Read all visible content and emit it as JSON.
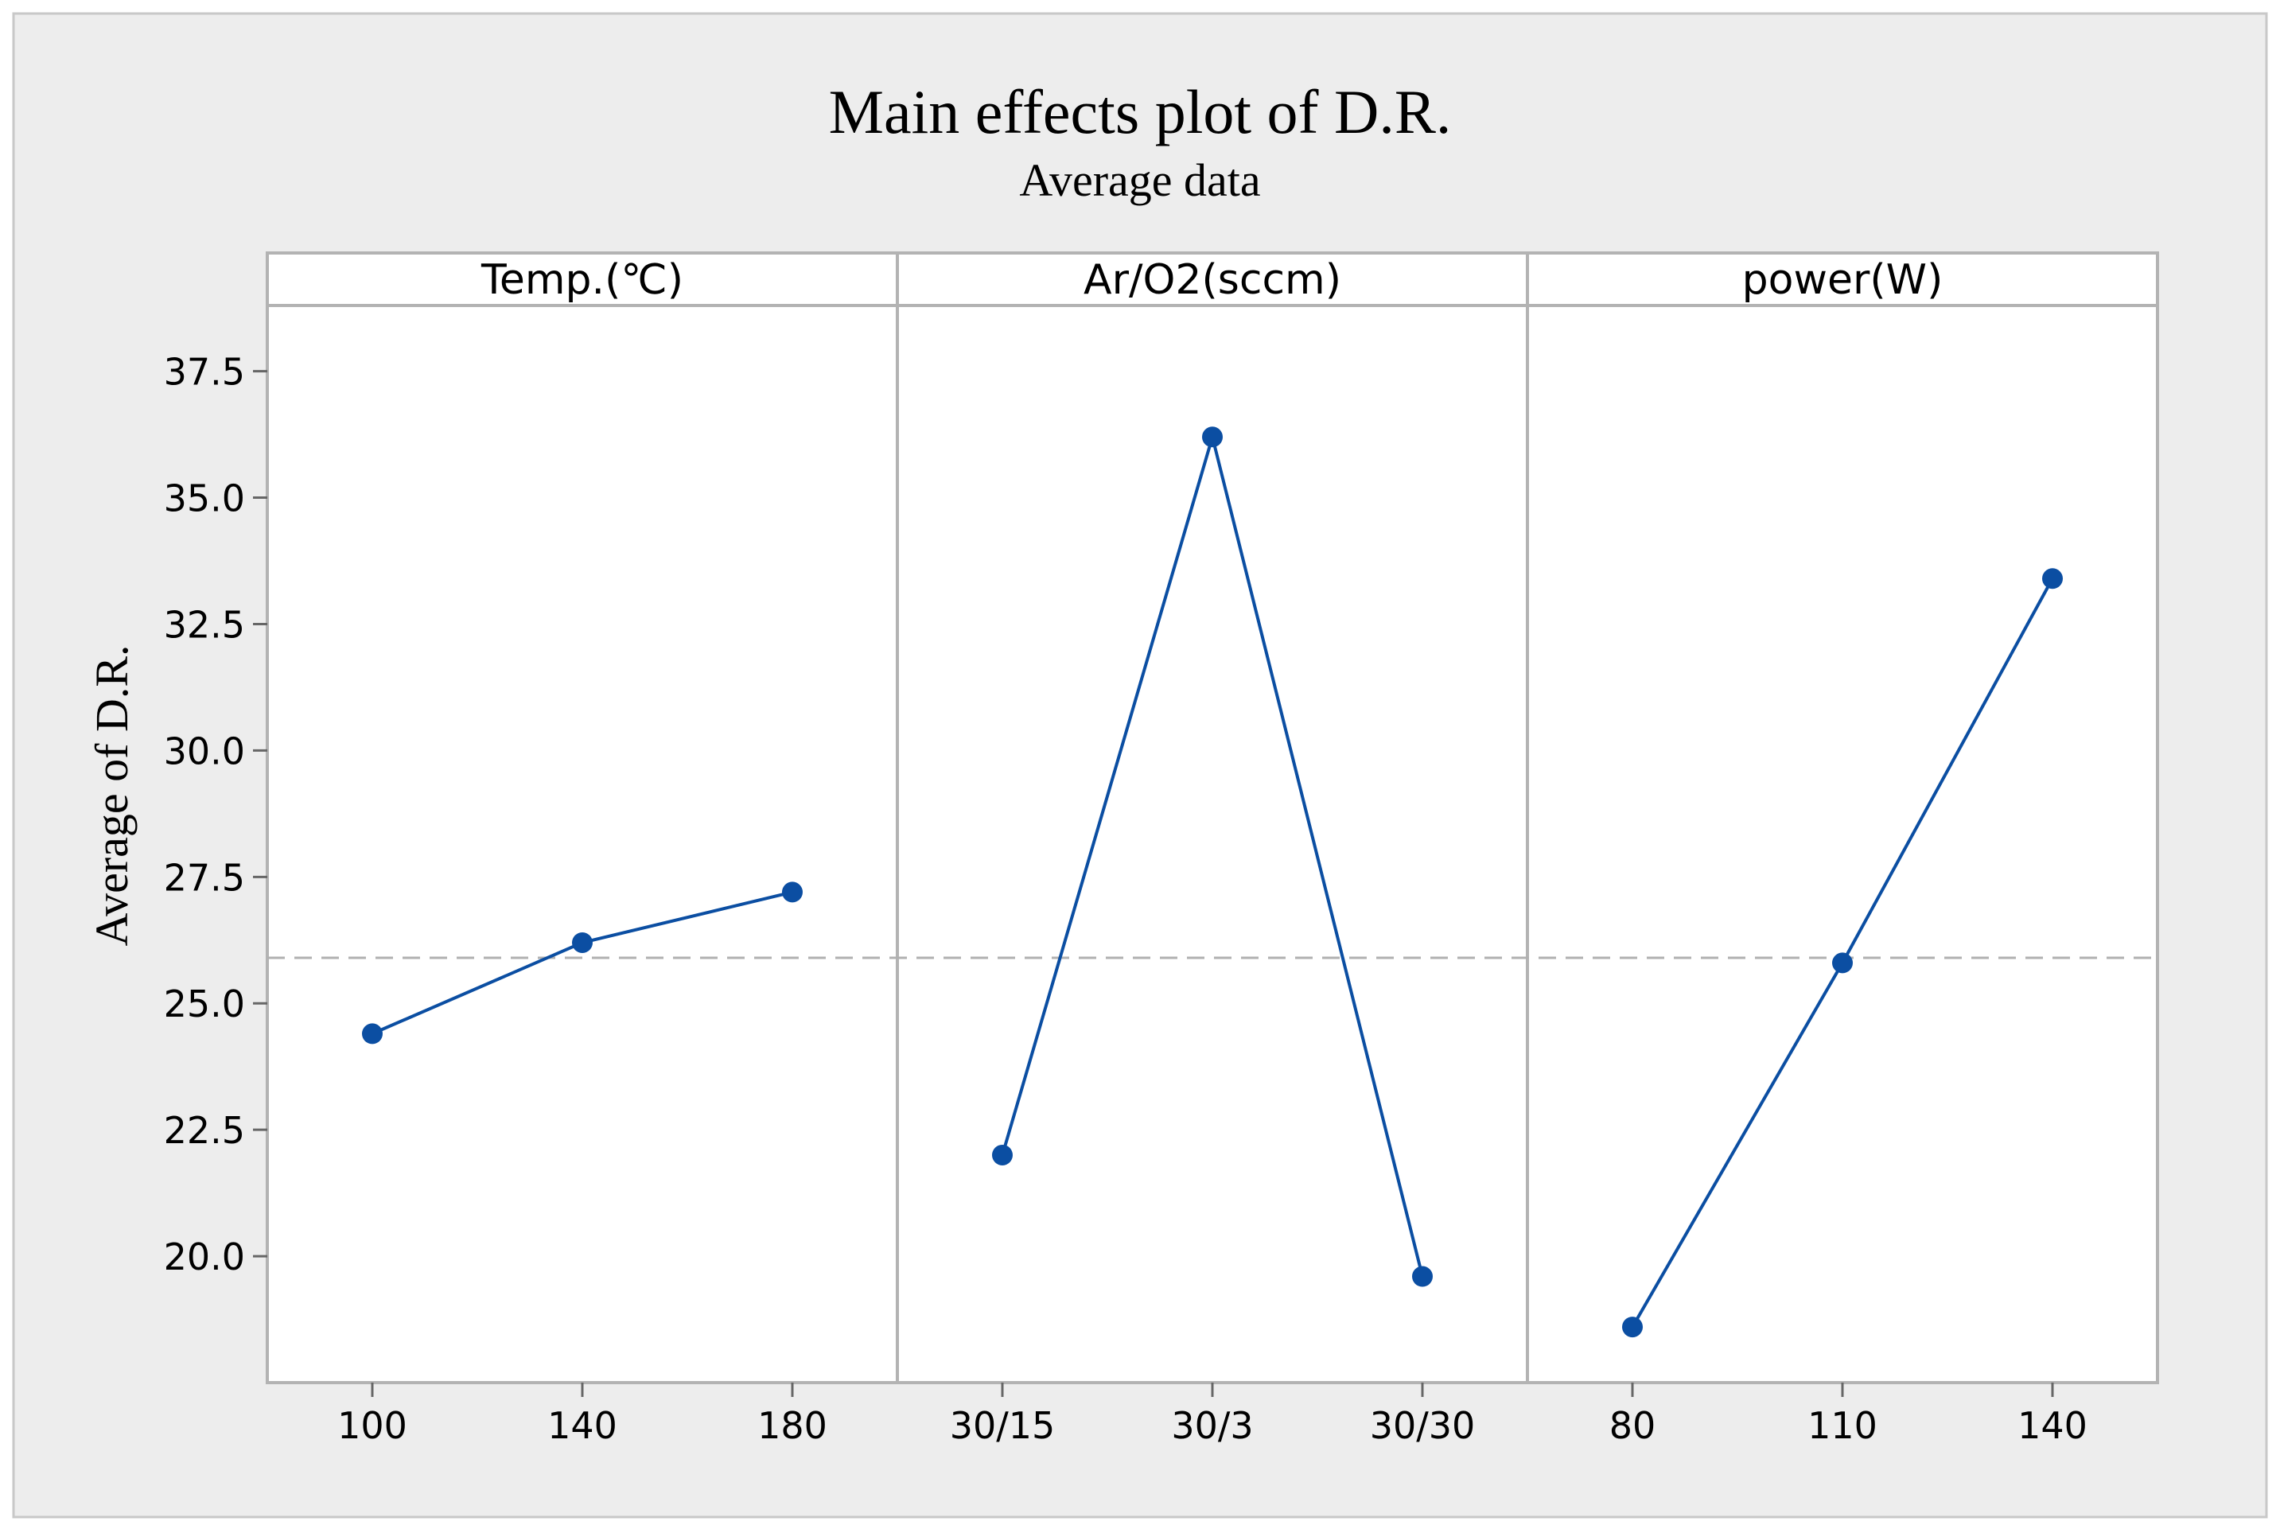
{
  "chart_data": {
    "type": "line",
    "title": "Main effects plot of D.R.",
    "subtitle": "Average data",
    "ylabel": "Average of D.R.",
    "xlabel": "",
    "ylim": [
      17.5,
      38.8
    ],
    "yticks": [
      20.0,
      22.5,
      25.0,
      27.5,
      30.0,
      32.5,
      35.0,
      37.5
    ],
    "ytick_labels": [
      "20.0",
      "22.5",
      "25.0",
      "27.5",
      "30.0",
      "32.5",
      "35.0",
      "37.5"
    ],
    "reference_line": 25.9,
    "grid": false,
    "series_color": "#0b4ea2",
    "panels": [
      {
        "name": "Temp.(℃)",
        "categories": [
          "100",
          "140",
          "180"
        ],
        "values": [
          24.4,
          26.2,
          27.2
        ]
      },
      {
        "name": "Ar/O2(sccm)",
        "categories": [
          "30/15",
          "30/3",
          "30/30"
        ],
        "values": [
          22.0,
          36.2,
          19.6
        ]
      },
      {
        "name": "power(W)",
        "categories": [
          "80",
          "110",
          "140"
        ],
        "values": [
          18.6,
          25.8,
          33.4
        ]
      }
    ]
  }
}
